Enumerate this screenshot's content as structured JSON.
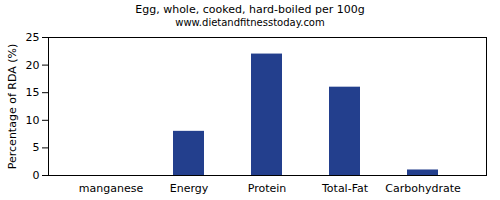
{
  "chart_data": {
    "type": "bar",
    "title": "Egg, whole, cooked, hard-boiled per 100g",
    "subtitle": "www.dietandfitnesstoday.com",
    "y_label": "Percentage of RDA (%)",
    "categories": [
      "manganese",
      "Energy",
      "Protein",
      "Total-Fat",
      "Carbohydrate"
    ],
    "values": [
      0,
      8,
      22,
      16,
      1
    ],
    "color": "#233f8d",
    "ylim": [
      0,
      25
    ],
    "yticks": [
      0,
      5,
      10,
      15,
      20,
      25
    ],
    "grid": false
  }
}
